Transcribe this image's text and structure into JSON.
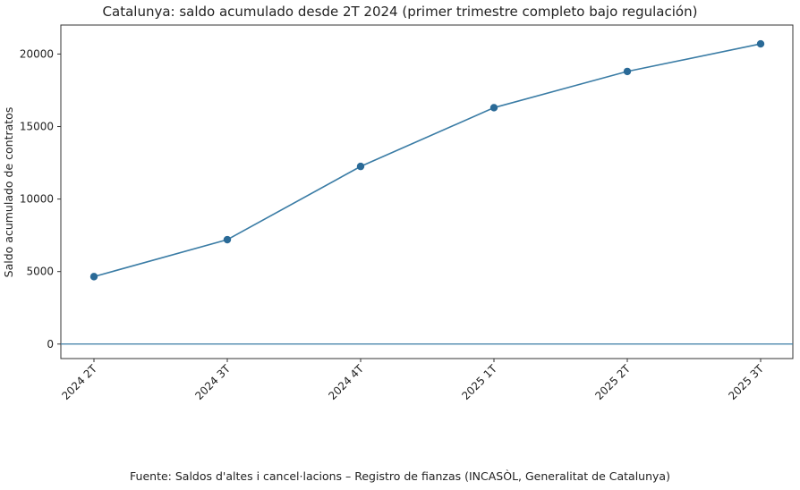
{
  "chart_data": {
    "type": "line",
    "title": "Catalunya: saldo acumulado desde 2T 2024 (primer trimestre completo bajo regulación)",
    "xlabel": "",
    "ylabel": "Saldo acumulado de contratos",
    "categories": [
      "2024 2T",
      "2024 3T",
      "2024 4T",
      "2025 1T",
      "2025 2T",
      "2025 3T"
    ],
    "values": [
      4650,
      7200,
      12250,
      16300,
      18800,
      20700
    ],
    "ylim": [
      -1000,
      22000
    ],
    "yticks": [
      0,
      5000,
      10000,
      15000,
      20000
    ],
    "grid": false,
    "zero_line": true,
    "line_color": "#3a7ca5",
    "marker_color": "#2a6a97"
  },
  "footer": "Fuente: Saldos d'altes i cancel·lacions – Registro de fianzas (INCASÒL, Generalitat de Catalunya)"
}
